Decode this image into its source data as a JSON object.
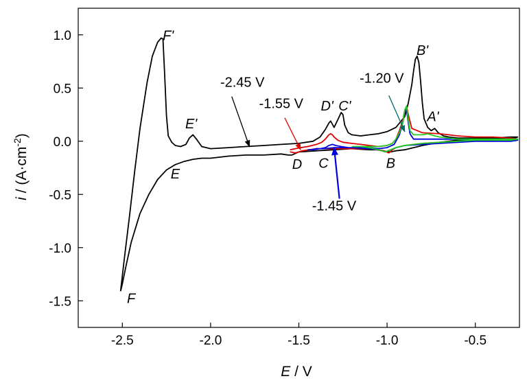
{
  "chart_data": {
    "type": "line",
    "xlabel_italic": "E",
    "xlabel_rest": " / V",
    "ylabel_italic": "i",
    "ylabel_rest": " / (A·cm",
    "ylabel_sup": "-2",
    "ylabel_close": ")",
    "xlim": [
      -2.75,
      -0.25
    ],
    "ylim": [
      -1.75,
      1.25
    ],
    "x_ticks": [
      -2.5,
      -2.0,
      -1.5,
      -1.0,
      -0.5
    ],
    "x_tick_labels": [
      "-2.5",
      "-2.0",
      "-1.5",
      "-1.0",
      "-0.5"
    ],
    "y_ticks": [
      1.0,
      0.5,
      0.0,
      -0.5,
      -1.0,
      -1.5
    ],
    "y_tick_labels": [
      "1.0",
      "0.5",
      "0.0",
      "-0.5",
      "-1.0",
      "-1.5"
    ],
    "grid": false,
    "series": [
      {
        "name": "-2.45 V",
        "color": "#000000",
        "x": [
          -2.51,
          -2.49,
          -2.46,
          -2.43,
          -2.4,
          -2.36,
          -2.33,
          -2.3,
          -2.28,
          -2.27,
          -2.26,
          -2.25,
          -2.24,
          -2.22,
          -2.2,
          -2.17,
          -2.14,
          -2.12,
          -2.1,
          -2.08,
          -2.05,
          -2.0,
          -1.9,
          -1.8,
          -1.7,
          -1.6,
          -1.5,
          -1.42,
          -1.38,
          -1.35,
          -1.33,
          -1.32,
          -1.31,
          -1.3,
          -1.28,
          -1.26,
          -1.25,
          -1.24,
          -1.22,
          -1.2,
          -1.15,
          -1.1,
          -1.05,
          -1.0,
          -0.95,
          -0.9,
          -0.88,
          -0.86,
          -0.85,
          -0.84,
          -0.83,
          -0.82,
          -0.81,
          -0.8,
          -0.79,
          -0.77,
          -0.75,
          -0.74,
          -0.73,
          -0.71,
          -0.68,
          -0.65,
          -0.6,
          -0.5,
          -0.4,
          -0.3,
          -0.26,
          -0.28,
          -0.4,
          -0.5,
          -0.6,
          -0.7,
          -0.8,
          -0.85,
          -0.9,
          -0.95,
          -0.98,
          -1.0,
          -1.02,
          -1.05,
          -1.1,
          -1.2,
          -1.3,
          -1.4,
          -1.5,
          -1.54,
          -1.56,
          -1.6,
          -1.7,
          -1.8,
          -1.9,
          -2.0,
          -2.05,
          -2.1,
          -2.15,
          -2.2,
          -2.25,
          -2.3,
          -2.35,
          -2.4,
          -2.45,
          -2.48,
          -2.5,
          -2.51
        ],
        "y": [
          -1.41,
          -1.12,
          -0.71,
          -0.28,
          0.12,
          0.55,
          0.8,
          0.93,
          0.97,
          0.96,
          0.62,
          0.24,
          0.05,
          -0.01,
          -0.04,
          -0.05,
          -0.03,
          0.03,
          0.06,
          0.02,
          -0.05,
          -0.07,
          -0.06,
          -0.05,
          -0.04,
          -0.03,
          -0.02,
          0.0,
          0.04,
          0.11,
          0.17,
          0.19,
          0.16,
          0.13,
          0.2,
          0.27,
          0.25,
          0.15,
          0.08,
          0.06,
          0.05,
          0.06,
          0.07,
          0.09,
          0.13,
          0.23,
          0.36,
          0.53,
          0.66,
          0.77,
          0.8,
          0.74,
          0.56,
          0.36,
          0.21,
          0.13,
          0.1,
          0.11,
          0.12,
          0.08,
          0.05,
          0.04,
          0.03,
          0.03,
          0.03,
          0.04,
          0.04,
          0.03,
          0.03,
          0.02,
          0.01,
          -0.01,
          -0.04,
          -0.06,
          -0.08,
          -0.09,
          -0.1,
          -0.1,
          -0.09,
          -0.08,
          -0.08,
          -0.07,
          -0.08,
          -0.09,
          -0.1,
          -0.13,
          -0.13,
          -0.12,
          -0.13,
          -0.13,
          -0.14,
          -0.16,
          -0.16,
          -0.17,
          -0.19,
          -0.22,
          -0.27,
          -0.36,
          -0.5,
          -0.68,
          -0.95,
          -1.18,
          -1.34,
          -1.41
        ]
      },
      {
        "name": "-1.55 V",
        "color": "#e00000",
        "x": [
          -1.55,
          -1.52,
          -1.49,
          -1.45,
          -1.4,
          -1.37,
          -1.35,
          -1.33,
          -1.32,
          -1.31,
          -1.3,
          -1.28,
          -1.25,
          -1.2,
          -1.15,
          -1.1,
          -1.05,
          -1.0,
          -0.97,
          -0.95,
          -0.93,
          -0.91,
          -0.9,
          -0.89,
          -0.88,
          -0.86,
          -0.8,
          -0.7,
          -0.6,
          -0.5,
          -0.4,
          -0.3,
          -0.26,
          -0.3,
          -0.4,
          -0.5,
          -0.6,
          -0.7,
          -0.8,
          -0.9,
          -0.95,
          -0.97,
          -0.99,
          -1.02,
          -1.06,
          -1.1,
          -1.2,
          -1.3,
          -1.4,
          -1.48,
          -1.52,
          -1.55
        ],
        "y": [
          -0.08,
          -0.07,
          -0.06,
          -0.05,
          -0.03,
          -0.01,
          0.02,
          0.06,
          0.07,
          0.06,
          0.04,
          0.01,
          -0.01,
          -0.02,
          -0.03,
          -0.04,
          -0.05,
          -0.04,
          -0.02,
          0.02,
          0.1,
          0.2,
          0.29,
          0.33,
          0.25,
          0.12,
          0.08,
          0.07,
          0.05,
          0.04,
          0.04,
          0.03,
          0.02,
          0.01,
          0.01,
          0.01,
          0.0,
          -0.01,
          -0.02,
          -0.04,
          -0.06,
          -0.08,
          -0.11,
          -0.09,
          -0.08,
          -0.07,
          -0.07,
          -0.07,
          -0.07,
          -0.09,
          -0.11,
          -0.1
        ]
      },
      {
        "name": "-1.45 V",
        "color": "#0000dd",
        "x": [
          -1.45,
          -1.42,
          -1.38,
          -1.35,
          -1.33,
          -1.31,
          -1.29,
          -1.26,
          -1.22,
          -1.18,
          -1.14,
          -1.1,
          -1.05,
          -1.0,
          -0.96,
          -0.93,
          -0.91,
          -0.9,
          -0.89,
          -0.88,
          -0.87,
          -0.85,
          -0.8,
          -0.7,
          -0.6,
          -0.5,
          -0.4,
          -0.3,
          -0.26,
          -0.3,
          -0.4,
          -0.5,
          -0.6,
          -0.7,
          -0.8,
          -0.9,
          -0.95,
          -0.98,
          -1.01,
          -1.05,
          -1.1,
          -1.2,
          -1.3,
          -1.36,
          -1.4,
          -1.43,
          -1.45
        ],
        "y": [
          -0.08,
          -0.08,
          -0.07,
          -0.06,
          -0.04,
          -0.03,
          -0.04,
          -0.05,
          -0.06,
          -0.06,
          -0.06,
          -0.06,
          -0.07,
          -0.06,
          -0.03,
          0.06,
          0.18,
          0.28,
          0.3,
          0.17,
          0.07,
          0.02,
          0.02,
          0.02,
          0.02,
          0.01,
          0.01,
          0.01,
          0.01,
          0.0,
          0.0,
          0.0,
          -0.01,
          -0.02,
          -0.03,
          -0.04,
          -0.06,
          -0.08,
          -0.1,
          -0.08,
          -0.07,
          -0.06,
          -0.06,
          -0.07,
          -0.07,
          -0.08,
          -0.08
        ]
      },
      {
        "name": "-1.20 V",
        "color": "#22cc22",
        "x": [
          -1.2,
          -1.15,
          -1.1,
          -1.05,
          -1.0,
          -0.97,
          -0.95,
          -0.93,
          -0.91,
          -0.9,
          -0.89,
          -0.88,
          -0.87,
          -0.85,
          -0.8,
          -0.77,
          -0.75,
          -0.73,
          -0.7,
          -0.65,
          -0.6,
          -0.5,
          -0.4,
          -0.3,
          -0.26,
          -0.3,
          -0.4,
          -0.5,
          -0.6,
          -0.7,
          -0.8,
          -0.9,
          -0.95,
          -0.98,
          -1.01,
          -1.05,
          -1.1,
          -1.15,
          -1.2
        ],
        "y": [
          -0.05,
          -0.05,
          -0.05,
          -0.05,
          -0.04,
          -0.02,
          0.02,
          0.08,
          0.18,
          0.29,
          0.33,
          0.2,
          0.1,
          0.06,
          0.06,
          0.07,
          0.06,
          0.05,
          0.04,
          0.03,
          0.02,
          0.02,
          0.02,
          0.02,
          0.02,
          0.01,
          0.01,
          0.01,
          0.0,
          -0.01,
          -0.02,
          -0.04,
          -0.06,
          -0.08,
          -0.1,
          -0.08,
          -0.06,
          -0.05,
          -0.05
        ]
      }
    ],
    "annotations": [
      {
        "text": "-2.45 V",
        "x": -1.82,
        "y": 0.51,
        "arrow_from": [
          -1.88,
          0.42
        ],
        "arrow_to": [
          -1.78,
          -0.05
        ],
        "color": "#000000"
      },
      {
        "text": "-1.55 V",
        "x": -1.6,
        "y": 0.31,
        "arrow_from": [
          -1.58,
          0.22
        ],
        "arrow_to": [
          -1.49,
          -0.08
        ],
        "color": "#e00000"
      },
      {
        "text": "-1.20 V",
        "x": -1.03,
        "y": 0.55,
        "arrow_from": [
          -0.99,
          0.43
        ],
        "arrow_to": [
          -0.9,
          0.09
        ],
        "color": "#006666"
      },
      {
        "text": "-1.45 V",
        "x": -1.3,
        "y": -0.65,
        "arrow_from": [
          -1.27,
          -0.54
        ],
        "arrow_to": [
          -1.3,
          -0.06
        ],
        "color": "#0000dd"
      }
    ],
    "peak_labels": [
      {
        "text": "F'",
        "x": -2.24,
        "y": 0.95
      },
      {
        "text": "E'",
        "x": -2.11,
        "y": 0.12
      },
      {
        "text": "D'",
        "x": -1.34,
        "y": 0.29
      },
      {
        "text": "C'",
        "x": -1.24,
        "y": 0.29
      },
      {
        "text": "B'",
        "x": -0.8,
        "y": 0.81
      },
      {
        "text": "A'",
        "x": -0.74,
        "y": 0.19
      },
      {
        "text": "F",
        "x": -2.45,
        "y": -1.52
      },
      {
        "text": "E",
        "x": -2.2,
        "y": -0.35
      },
      {
        "text": "D",
        "x": -1.51,
        "y": -0.26
      },
      {
        "text": "C",
        "x": -1.36,
        "y": -0.25
      },
      {
        "text": "B",
        "x": -0.98,
        "y": -0.25
      }
    ]
  }
}
